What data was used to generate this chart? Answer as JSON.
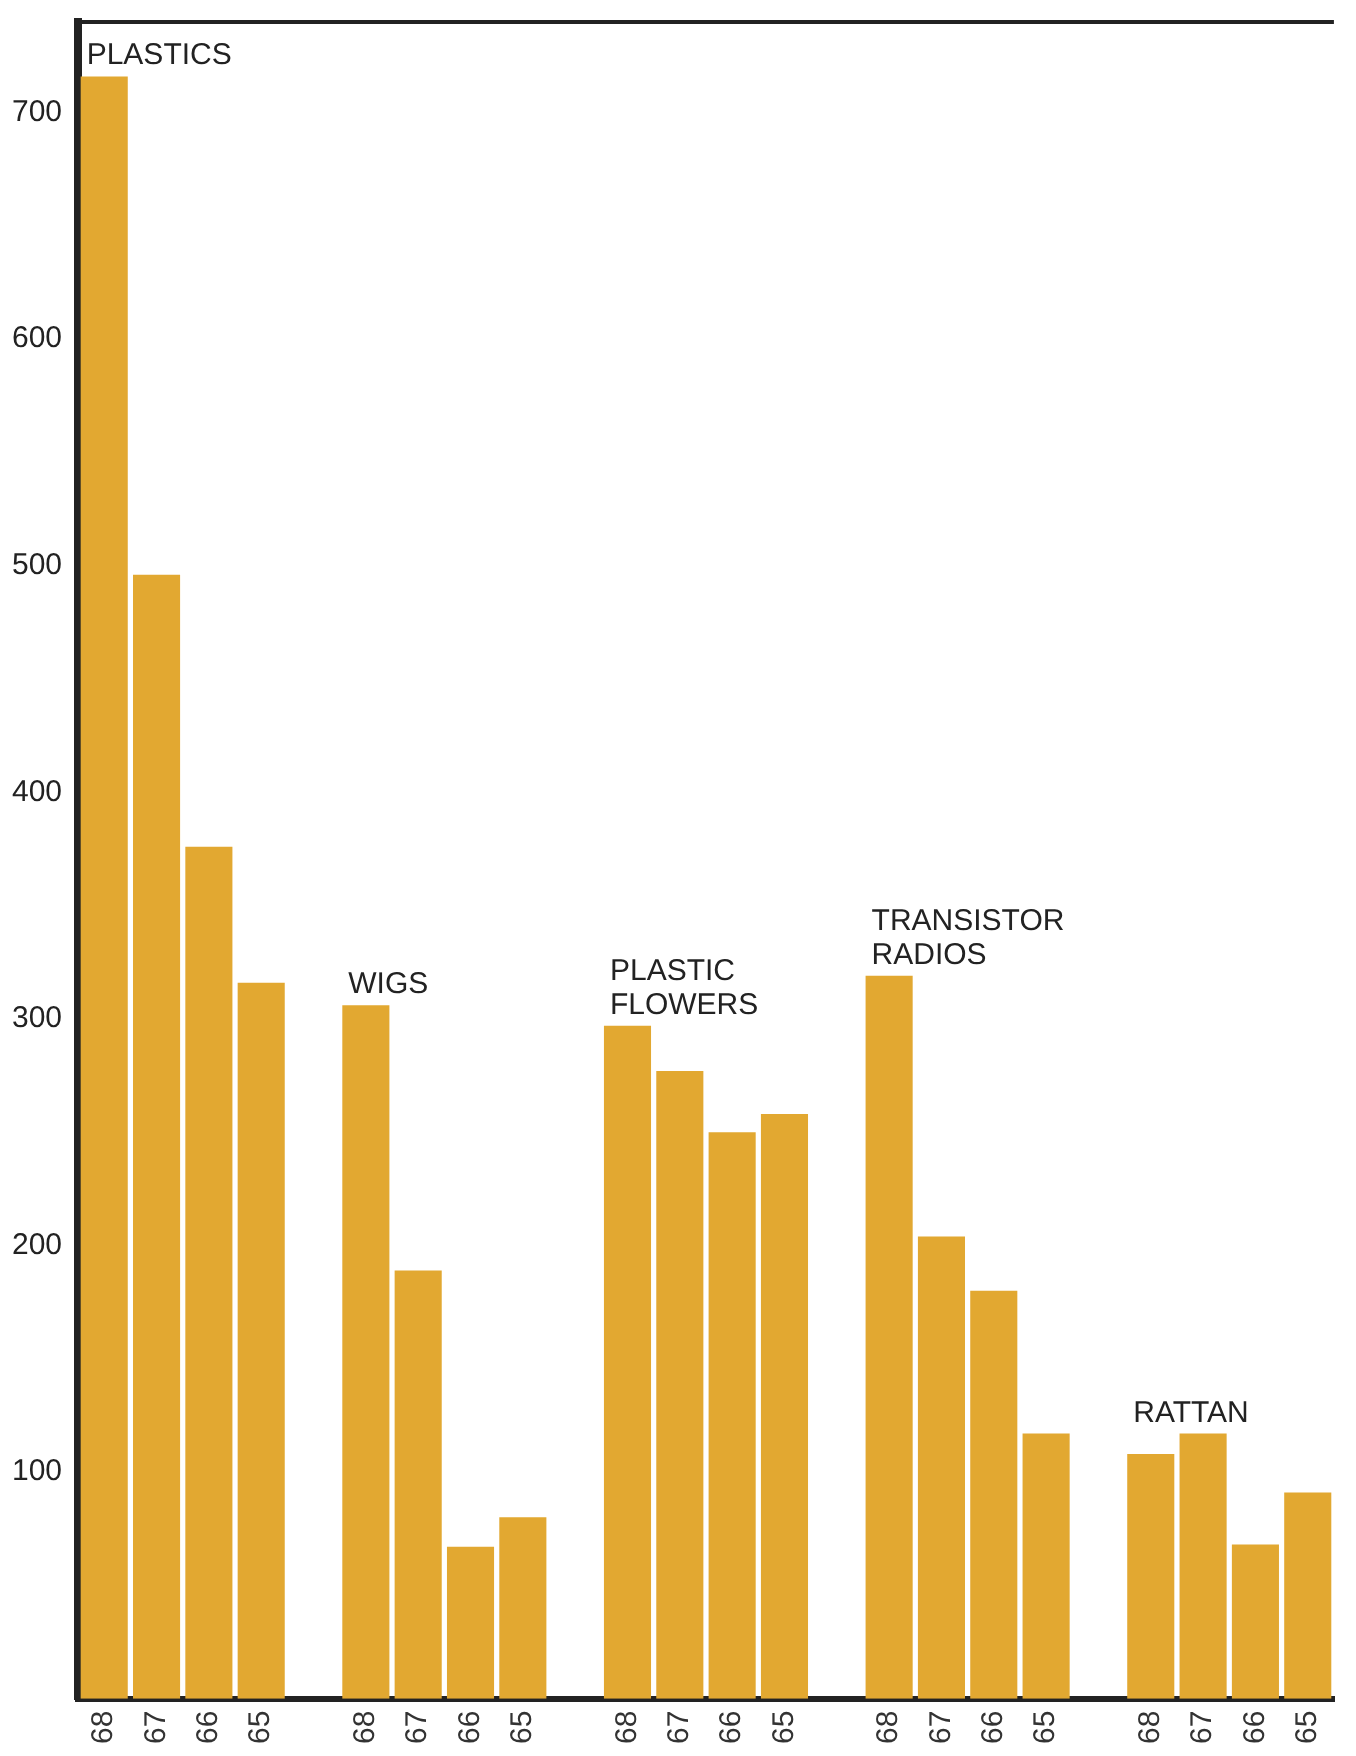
{
  "chart_data": {
    "type": "bar",
    "categories": [
      "68",
      "67",
      "66",
      "65",
      null,
      "68",
      "67",
      "66",
      "65",
      null,
      "68",
      "67",
      "66",
      "65",
      null,
      "68",
      "67",
      "66",
      "65",
      null,
      "68",
      "67",
      "66",
      "65"
    ],
    "values": [
      716,
      496,
      376,
      316,
      null,
      306,
      189,
      67,
      80,
      null,
      297,
      277,
      250,
      258,
      null,
      319,
      204,
      180,
      117,
      null,
      108,
      117,
      68,
      91
    ],
    "color": "#e2a831",
    "ylim": [
      0,
      740
    ],
    "yticks": [
      100,
      200,
      300,
      400,
      500,
      600,
      700
    ],
    "grid": false,
    "legend": false,
    "annotations": [
      "PLASTICS",
      "WIGS",
      "PLASTIC FLOWERS",
      "TRANSISTOR RADIOS",
      "RATTAN"
    ]
  }
}
